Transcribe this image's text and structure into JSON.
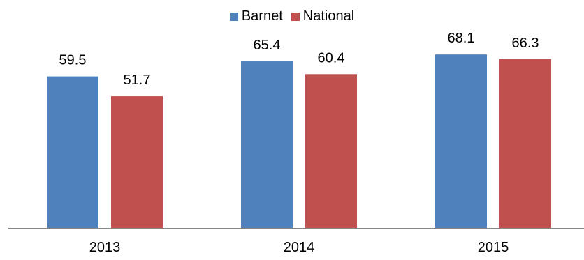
{
  "chart_data": {
    "type": "bar",
    "title": "",
    "xlabel": "",
    "ylabel": "",
    "categories": [
      "2013",
      "2014",
      "2015"
    ],
    "series": [
      {
        "name": "Barnet",
        "color": "#4F81BD",
        "values": [
          59.5,
          65.4,
          68.1
        ]
      },
      {
        "name": "National",
        "color": "#C0504D",
        "values": [
          51.7,
          60.4,
          66.3
        ]
      }
    ],
    "ylim": [
      0,
      78
    ],
    "grid": false,
    "legend": "top-center",
    "data_labels": true
  }
}
